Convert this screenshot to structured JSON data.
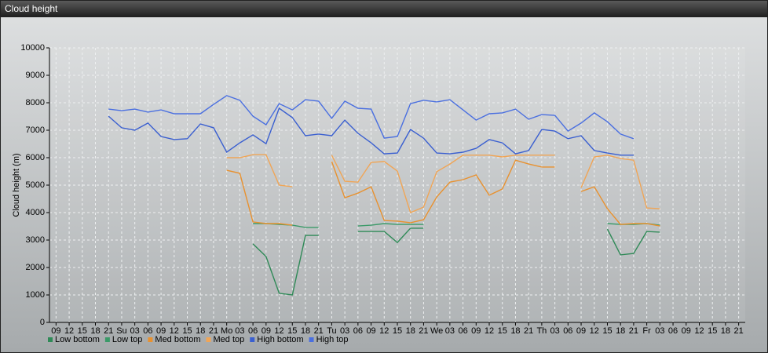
{
  "window_title": "Cloud height",
  "chart_data": {
    "type": "line",
    "y_label": "Cloud height (m)",
    "categories": [
      "09",
      "12",
      "15",
      "18",
      "21",
      "Su",
      "03",
      "06",
      "09",
      "12",
      "15",
      "18",
      "21",
      "Mo",
      "03",
      "06",
      "09",
      "12",
      "15",
      "18",
      "21",
      "Tu",
      "03",
      "06",
      "09",
      "12",
      "15",
      "18",
      "21",
      "We",
      "03",
      "06",
      "09",
      "12",
      "15",
      "18",
      "21",
      "Th",
      "03",
      "06",
      "09",
      "12",
      "15",
      "18",
      "21",
      "Fr",
      "03",
      "06",
      "09",
      "12",
      "15",
      "18",
      "21"
    ],
    "ylim": [
      0,
      10000
    ],
    "yticks": [
      0,
      1000,
      2000,
      3000,
      4000,
      5000,
      6000,
      7000,
      8000,
      9000,
      10000
    ],
    "grid": true,
    "legend": "bottom",
    "series": [
      {
        "name": "Low bottom",
        "color": "#2f8a57",
        "values": [
          null,
          null,
          null,
          null,
          null,
          null,
          null,
          null,
          null,
          null,
          null,
          null,
          null,
          null,
          null,
          2860,
          2400,
          1060,
          1000,
          3170,
          3170,
          null,
          null,
          3310,
          3310,
          3310,
          2910,
          3430,
          3430,
          null,
          null,
          null,
          null,
          null,
          null,
          null,
          null,
          null,
          null,
          null,
          null,
          null,
          3400,
          2460,
          2510,
          3310,
          3290,
          null,
          null,
          null,
          null,
          null,
          null
        ]
      },
      {
        "name": "Low top",
        "color": "#3a9a68",
        "values": [
          null,
          null,
          null,
          null,
          null,
          null,
          null,
          null,
          null,
          null,
          null,
          null,
          null,
          null,
          null,
          3600,
          3600,
          3570,
          3540,
          3460,
          3460,
          null,
          null,
          3510,
          3540,
          3600,
          3570,
          3570,
          3570,
          null,
          null,
          null,
          null,
          null,
          null,
          null,
          null,
          null,
          null,
          null,
          null,
          null,
          3600,
          3570,
          3570,
          3600,
          3540,
          null,
          null,
          null,
          null,
          null,
          null
        ]
      },
      {
        "name": "Med bottom",
        "color": "#e8912f",
        "values": [
          null,
          null,
          null,
          null,
          null,
          null,
          null,
          null,
          null,
          null,
          null,
          null,
          null,
          5540,
          5430,
          3660,
          3600,
          3600,
          3540,
          null,
          null,
          5860,
          4540,
          4710,
          4940,
          3710,
          3690,
          3630,
          3740,
          4570,
          5110,
          5200,
          5370,
          4630,
          4860,
          5910,
          5770,
          5660,
          5660,
          null,
          4770,
          4940,
          4140,
          3570,
          3600,
          3600,
          3510,
          null,
          null,
          null,
          null,
          null,
          null
        ]
      },
      {
        "name": "Med top",
        "color": "#f0a556",
        "values": [
          null,
          null,
          null,
          null,
          null,
          null,
          null,
          null,
          null,
          null,
          null,
          null,
          null,
          6000,
          6000,
          6110,
          6110,
          5000,
          4940,
          null,
          null,
          6090,
          5140,
          5110,
          5830,
          5860,
          5510,
          4000,
          4200,
          5490,
          5770,
          6090,
          6090,
          6090,
          6030,
          6090,
          6090,
          6090,
          6090,
          null,
          4910,
          6030,
          6090,
          5970,
          5910,
          4170,
          4140,
          null,
          null,
          null,
          null,
          null,
          null
        ]
      },
      {
        "name": "High bottom",
        "color": "#3a5fd0",
        "values": [
          null,
          null,
          null,
          null,
          7510,
          7090,
          7000,
          7260,
          6770,
          6660,
          6690,
          7230,
          7090,
          6200,
          6540,
          6830,
          6510,
          7800,
          7460,
          6800,
          6860,
          6800,
          7370,
          6890,
          6540,
          6140,
          6170,
          7030,
          6710,
          6170,
          6140,
          6200,
          6340,
          6660,
          6540,
          6140,
          6260,
          7030,
          6970,
          6690,
          6800,
          6260,
          6170,
          6090,
          6090,
          null,
          null,
          null,
          null,
          null,
          null,
          null,
          null
        ]
      },
      {
        "name": "High top",
        "color": "#4a6fe0",
        "values": [
          null,
          null,
          null,
          null,
          7770,
          7710,
          7770,
          7660,
          7740,
          7600,
          7600,
          7600,
          7940,
          8260,
          8090,
          7510,
          7200,
          7970,
          7740,
          8110,
          8060,
          7430,
          8060,
          7800,
          7770,
          6710,
          6770,
          7970,
          8090,
          8030,
          8110,
          7740,
          7370,
          7600,
          7630,
          7770,
          7400,
          7570,
          7540,
          6970,
          7260,
          7630,
          7310,
          6860,
          6690,
          null,
          null,
          null,
          null,
          null,
          null,
          null,
          null
        ]
      }
    ]
  }
}
